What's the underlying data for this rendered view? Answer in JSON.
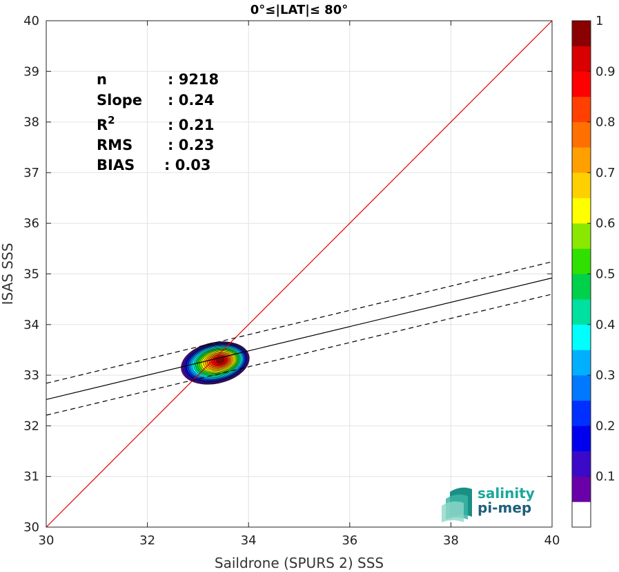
{
  "chart_data": {
    "type": "scatter",
    "title": "0°≤|LAT|≤ 80°",
    "xlabel": "Saildrone (SPURS 2) SSS",
    "ylabel": "ISAS SSS",
    "xlim": [
      30,
      40
    ],
    "ylim": [
      30,
      40
    ],
    "xticks": [
      "30",
      "32",
      "34",
      "36",
      "38",
      "40"
    ],
    "yticks": [
      "30",
      "31",
      "32",
      "33",
      "34",
      "35",
      "36",
      "37",
      "38",
      "39",
      "40"
    ],
    "grid": true,
    "identity_line": {
      "x": [
        30,
        40
      ],
      "y": [
        30,
        40
      ],
      "color": "#e00000"
    },
    "fit_line": {
      "x": [
        30,
        40
      ],
      "y": [
        32.52,
        34.92
      ],
      "color": "#000000"
    },
    "fit_upper": {
      "x": [
        30,
        40
      ],
      "y": [
        32.84,
        35.24
      ]
    },
    "fit_lower": {
      "x": [
        30,
        40
      ],
      "y": [
        32.21,
        34.6
      ]
    },
    "density_center": {
      "x": 33.45,
      "y": 33.35
    },
    "density_levels": [
      0.05,
      0.1,
      0.2,
      0.3,
      0.4,
      0.5,
      0.6,
      0.7,
      0.8,
      0.9,
      1.0
    ],
    "stats": [
      {
        "label": "n",
        "value": ": 9218"
      },
      {
        "label": "Slope",
        "value": ": 0.24"
      },
      {
        "label": "R",
        "sup": "2",
        "value": ": 0.21"
      },
      {
        "label": "RMS",
        "value": ": 0.23"
      },
      {
        "label": "BIAS",
        "value": ": 0.03"
      }
    ],
    "colorbar": {
      "range": [
        0,
        1
      ],
      "ticks": [
        "0.1",
        "0.2",
        "0.3",
        "0.4",
        "0.5",
        "0.6",
        "0.7",
        "0.8",
        "0.9",
        "1"
      ],
      "colors": [
        "#ffffff",
        "#6a00a8",
        "#3a0ac8",
        "#0000ee",
        "#0030ff",
        "#0078ff",
        "#00b0ff",
        "#00ffff",
        "#00e0a0",
        "#00d04a",
        "#30e000",
        "#8ae800",
        "#ffff00",
        "#ffd000",
        "#ffa000",
        "#ff7000",
        "#ff4000",
        "#ff0000",
        "#d80000",
        "#8b0000"
      ]
    }
  },
  "logo": {
    "line1": "salinity",
    "line2": "pi-mep",
    "color1": "#1aa89a",
    "color2": "#1f5f7a"
  }
}
